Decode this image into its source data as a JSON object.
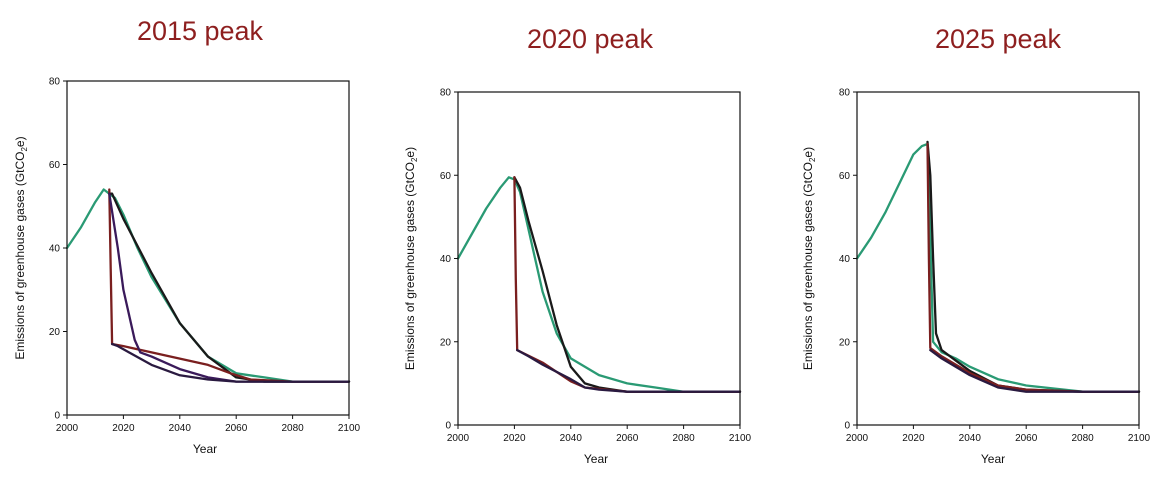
{
  "chart_data": [
    {
      "type": "line",
      "title": "2015 peak",
      "xlabel": "Year",
      "ylabel": "Emissions of greenhouse gases (GtCO",
      "ylabel_sub": "2",
      "ylabel_tail": "e)",
      "xlim": [
        2000,
        2100
      ],
      "ylim": [
        0,
        80
      ],
      "xticks": [
        2000,
        2020,
        2040,
        2060,
        2080,
        2100
      ],
      "yticks": [
        0,
        20,
        40,
        60,
        80
      ],
      "grid": false,
      "series": [
        {
          "color": "#2a9a74",
          "x": [
            2000,
            2005,
            2010,
            2013,
            2015,
            2017,
            2020,
            2025,
            2030,
            2040,
            2050,
            2060,
            2070,
            2080,
            2100
          ],
          "y": [
            40,
            45,
            51,
            54,
            53,
            52,
            48,
            40,
            33,
            22,
            14,
            10,
            9,
            8,
            8
          ]
        },
        {
          "color": "#1a1a1a",
          "x": [
            2015,
            2016,
            2020,
            2030,
            2040,
            2050,
            2060,
            2070,
            2080,
            2100
          ],
          "y": [
            53,
            53,
            47,
            34,
            22,
            14,
            9,
            8,
            8,
            8
          ]
        },
        {
          "color": "#7a1f1f",
          "x": [
            2015,
            2015.5,
            2016,
            2020,
            2030,
            2040,
            2050,
            2058,
            2065,
            2080,
            2100
          ],
          "y": [
            54,
            35,
            17,
            16.5,
            15,
            13.5,
            12,
            10,
            8.5,
            8,
            8
          ]
        },
        {
          "color": "#3a1a5a",
          "x": [
            2015,
            2018,
            2020,
            2024,
            2026,
            2030,
            2040,
            2050,
            2060,
            2080,
            2100
          ],
          "y": [
            53,
            40,
            30,
            18,
            15,
            14,
            11,
            9,
            8,
            8,
            8
          ]
        },
        {
          "color": "#2a1a40",
          "x": [
            2016,
            2018,
            2022,
            2030,
            2040,
            2050,
            2060,
            2080,
            2100
          ],
          "y": [
            17,
            16.5,
            15,
            12,
            9.5,
            8.5,
            8,
            8,
            8
          ]
        }
      ]
    },
    {
      "type": "line",
      "title": "2020 peak",
      "xlabel": "Year",
      "ylabel": "Emissions of greenhouse gases (GtCO",
      "ylabel_sub": "2",
      "ylabel_tail": "e)",
      "xlim": [
        2000,
        2100
      ],
      "ylim": [
        0,
        80
      ],
      "xticks": [
        2000,
        2020,
        2040,
        2060,
        2080,
        2100
      ],
      "yticks": [
        0,
        20,
        40,
        60,
        80
      ],
      "grid": false,
      "series": [
        {
          "color": "#2a9a74",
          "x": [
            2000,
            2005,
            2010,
            2015,
            2018,
            2020,
            2022,
            2025,
            2030,
            2035,
            2040,
            2050,
            2060,
            2070,
            2080,
            2100
          ],
          "y": [
            40,
            46,
            52,
            57,
            59.5,
            59,
            56,
            47,
            32,
            22,
            16,
            12,
            10,
            9,
            8,
            8
          ]
        },
        {
          "color": "#1a1a1a",
          "x": [
            2020,
            2022,
            2025,
            2030,
            2035,
            2040,
            2045,
            2050,
            2060,
            2080,
            2100
          ],
          "y": [
            59.5,
            57,
            49,
            37,
            24,
            14,
            10,
            9,
            8,
            8,
            8
          ]
        },
        {
          "color": "#7a1f1f",
          "x": [
            2020,
            2020.5,
            2021,
            2030,
            2040,
            2045,
            2060,
            2100
          ],
          "y": [
            59.5,
            35,
            18,
            15,
            10.5,
            9,
            8,
            8
          ]
        },
        {
          "color": "#2a1a40",
          "x": [
            2021,
            2025,
            2030,
            2040,
            2045,
            2050,
            2060,
            2080,
            2100
          ],
          "y": [
            18,
            16.5,
            14.5,
            11,
            9,
            8.5,
            8,
            8,
            8
          ]
        }
      ]
    },
    {
      "type": "line",
      "title": "2025 peak",
      "xlabel": "Year",
      "ylabel": "Emissions of greenhouse gases (GtCO",
      "ylabel_sub": "2",
      "ylabel_tail": "e)",
      "xlim": [
        2000,
        2100
      ],
      "ylim": [
        0,
        80
      ],
      "xticks": [
        2000,
        2020,
        2040,
        2060,
        2080,
        2100
      ],
      "yticks": [
        0,
        20,
        40,
        60,
        80
      ],
      "grid": false,
      "series": [
        {
          "color": "#2a9a74",
          "x": [
            2000,
            2005,
            2010,
            2015,
            2020,
            2023,
            2025,
            2026,
            2027,
            2030,
            2035,
            2040,
            2050,
            2060,
            2080,
            2100
          ],
          "y": [
            40,
            45,
            51,
            58,
            65,
            67,
            67.5,
            45,
            20,
            17.5,
            16,
            14,
            11,
            9.5,
            8,
            8
          ]
        },
        {
          "color": "#1a1a1a",
          "x": [
            2025,
            2026,
            2027,
            2028,
            2030,
            2040,
            2050,
            2060,
            2080,
            2100
          ],
          "y": [
            68,
            60,
            40,
            22,
            18,
            13,
            9.5,
            8.5,
            8,
            8
          ]
        },
        {
          "color": "#7a1f1f",
          "x": [
            2025,
            2025.5,
            2026,
            2030,
            2040,
            2050,
            2060,
            2080,
            2100
          ],
          "y": [
            67.5,
            40,
            18.5,
            16.5,
            12.5,
            9.5,
            8.5,
            8,
            8
          ]
        },
        {
          "color": "#2a1a40",
          "x": [
            2026,
            2030,
            2040,
            2050,
            2060,
            2080,
            2100
          ],
          "y": [
            18,
            16,
            12,
            9,
            8,
            8,
            8
          ]
        }
      ]
    }
  ]
}
